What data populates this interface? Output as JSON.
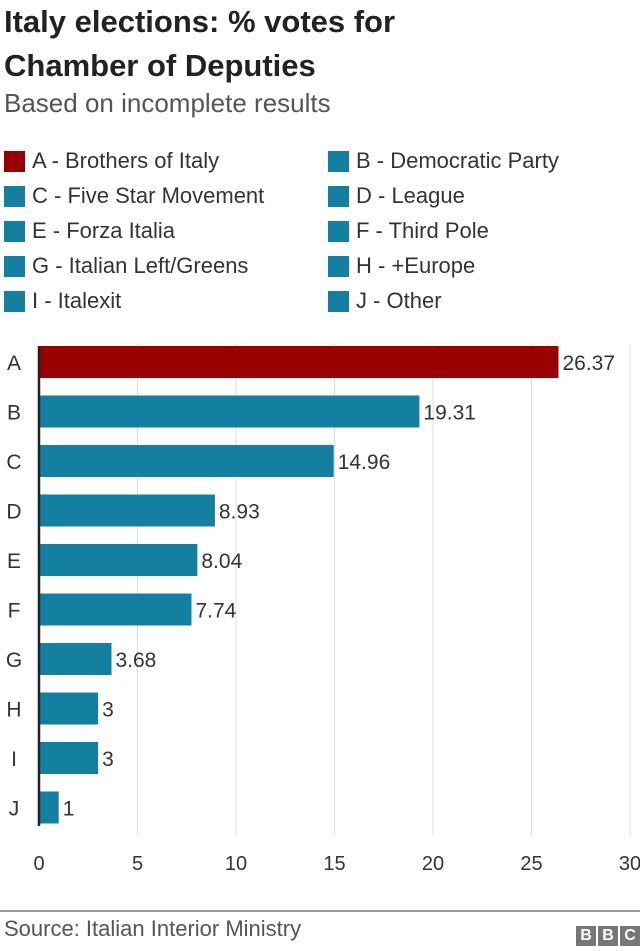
{
  "title": "Italy elections: % votes for Chamber of Deputies",
  "subtitle": "Based on incomplete results",
  "source": "Source: Italian Interior Ministry",
  "logo": "BBC",
  "chart_data": {
    "type": "bar",
    "orientation": "horizontal",
    "categories": [
      "A",
      "B",
      "C",
      "D",
      "E",
      "F",
      "G",
      "H",
      "I",
      "J"
    ],
    "values": [
      26.37,
      19.31,
      14.96,
      8.93,
      8.04,
      7.74,
      3.68,
      3,
      3,
      1
    ],
    "data_labels": [
      "26.37",
      "19.31",
      "14.96",
      "8.93",
      "8.04",
      "7.74",
      "3.68",
      "3",
      "3",
      "1"
    ],
    "legend": [
      {
        "label": "A - Brothers of Italy",
        "color": "#990000"
      },
      {
        "label": "B - Democratic Party",
        "color": "#1380A1"
      },
      {
        "label": "C - Five Star Movement",
        "color": "#1380A1"
      },
      {
        "label": "D - League",
        "color": "#1380A1"
      },
      {
        "label": "E - Forza Italia",
        "color": "#1380A1"
      },
      {
        "label": "F - Third Pole",
        "color": "#1380A1"
      },
      {
        "label": "G - Italian Left/Greens",
        "color": "#1380A1"
      },
      {
        "label": "H - +Europe",
        "color": "#1380A1"
      },
      {
        "label": "I - Italexit",
        "color": "#1380A1"
      },
      {
        "label": "J - Other",
        "color": "#1380A1"
      }
    ],
    "colors": [
      "#990000",
      "#1380A1",
      "#1380A1",
      "#1380A1",
      "#1380A1",
      "#1380A1",
      "#1380A1",
      "#1380A1",
      "#1380A1",
      "#1380A1"
    ],
    "xlim": [
      0,
      30
    ],
    "xticks": [
      "0",
      "5",
      "10",
      "15",
      "20",
      "25",
      "30"
    ],
    "grid": true,
    "legend_position": "top"
  }
}
